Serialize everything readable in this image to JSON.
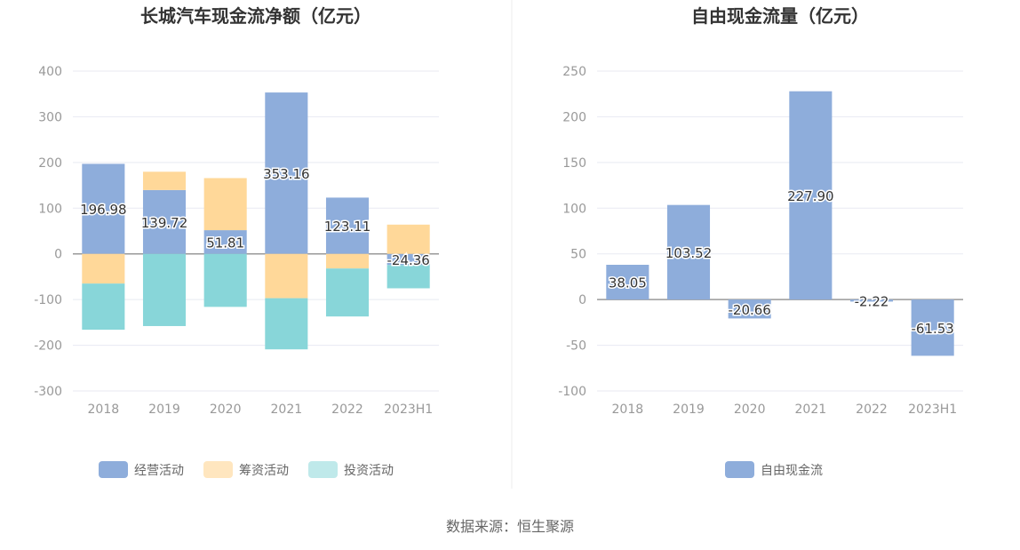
{
  "chart_data": [
    {
      "type": "bar",
      "stacked": true,
      "title": "长城汽车现金流净额（亿元）",
      "categories": [
        "2018",
        "2019",
        "2020",
        "2021",
        "2022",
        "2023H1"
      ],
      "ylim": [
        -300,
        400
      ],
      "yticks": [
        400,
        300,
        200,
        100,
        0,
        -100,
        -200,
        -300
      ],
      "series": [
        {
          "name": "经营活动",
          "color": "#8eaddb",
          "values": [
            196.98,
            139.72,
            51.81,
            353.16,
            123.11,
            -24.36
          ],
          "labels": [
            "196.98",
            "139.72",
            "51.81",
            "353.16",
            "123.11",
            "-24.36"
          ]
        },
        {
          "name": "筹资活动",
          "color": "#ffd899",
          "legend_color": "#ffe6bf",
          "values": [
            -65,
            40,
            114,
            -97,
            -32,
            64
          ]
        },
        {
          "name": "投资活动",
          "color": "#88d6d9",
          "legend_color": "#bfe9ea",
          "values": [
            -101,
            -158,
            -116,
            -112,
            -105,
            -51
          ]
        }
      ],
      "legend": "bottom"
    },
    {
      "type": "bar",
      "title": "自由现金流量（亿元）",
      "categories": [
        "2018",
        "2019",
        "2020",
        "2021",
        "2022",
        "2023H1"
      ],
      "ylim": [
        -100,
        250
      ],
      "yticks": [
        250,
        200,
        150,
        100,
        50,
        0,
        -50,
        -100
      ],
      "series": [
        {
          "name": "自由现金流",
          "color": "#8eaddb",
          "values": [
            38.05,
            103.52,
            -20.66,
            227.9,
            -2.22,
            -61.53
          ],
          "labels": [
            "38.05",
            "103.52",
            "-20.66",
            "227.90",
            "-2.22",
            "-61.53"
          ]
        }
      ],
      "legend": "bottom"
    }
  ],
  "source": "数据来源：恒生聚源"
}
